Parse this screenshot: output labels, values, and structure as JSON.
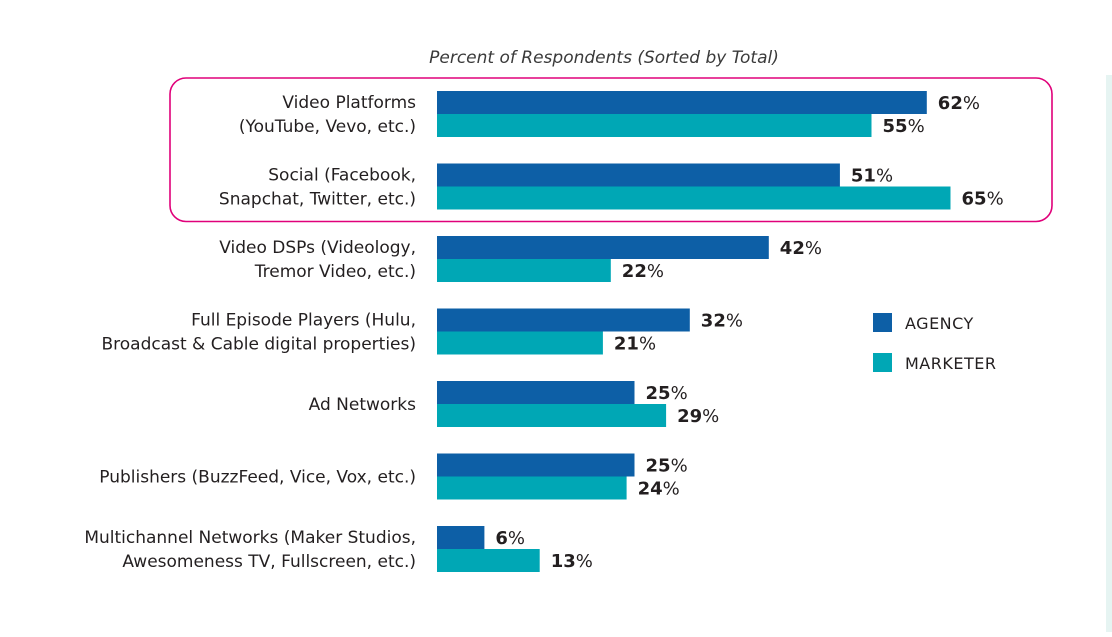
{
  "chart_data": {
    "type": "bar",
    "orientation": "horizontal",
    "subtitle": "Percent of Respondents (Sorted by Total)",
    "categories": [
      [
        "Video Platforms",
        "(YouTube, Vevo, etc.)"
      ],
      [
        "Social (Facebook,",
        "Snapchat, Twitter, etc.)"
      ],
      [
        "Video DSPs  (Videology,",
        "Tremor Video, etc.)"
      ],
      [
        "Full Episode Players (Hulu,",
        "Broadcast & Cable digital properties)"
      ],
      [
        "Ad Networks"
      ],
      [
        "Publishers (BuzzFeed, Vice, Vox, etc.)"
      ],
      [
        "Multichannel Networks (Maker Studios,",
        "Awesomeness TV, Fullscreen, etc.)"
      ]
    ],
    "series": [
      {
        "name": "AGENCY",
        "color": "#0d5fa6",
        "values": [
          62,
          51,
          42,
          32,
          25,
          25,
          6
        ]
      },
      {
        "name": "MARKETER",
        "color": "#00a7b5",
        "values": [
          55,
          65,
          22,
          21,
          29,
          24,
          13
        ]
      }
    ],
    "value_suffix": "%",
    "xlim": [
      0,
      65
    ],
    "grid": false,
    "legend_position": "right",
    "highlight": {
      "categories": [
        0,
        1
      ],
      "color": "#e0007a"
    }
  }
}
